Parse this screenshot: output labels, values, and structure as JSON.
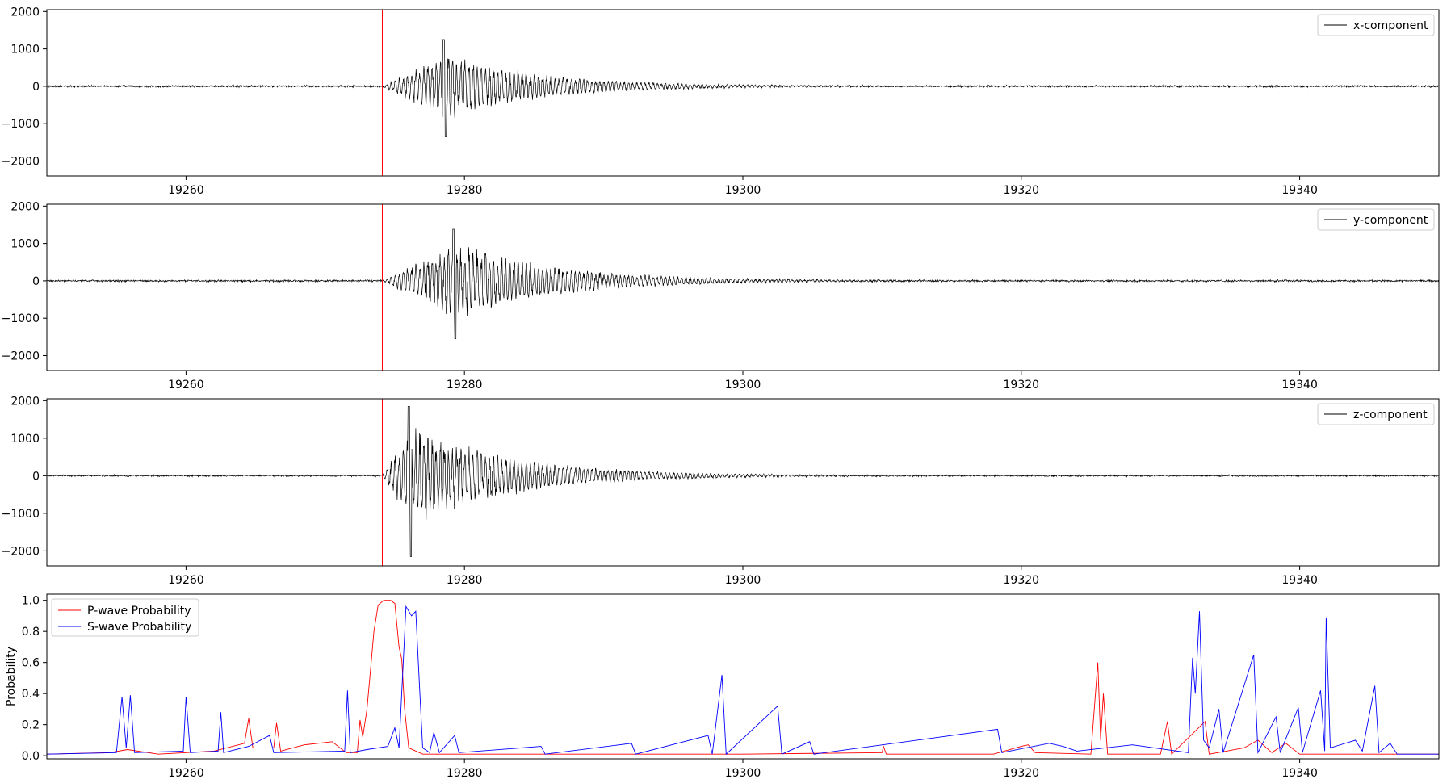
{
  "chart_data": [
    {
      "type": "line",
      "panel": "x",
      "xlim": [
        19250,
        19350
      ],
      "ylim": [
        -2400,
        2050
      ],
      "xticks": [
        19260,
        19280,
        19300,
        19320,
        19340
      ],
      "xtick_labels": [
        "19260",
        "19280",
        "19300",
        "19320",
        "19340"
      ],
      "yticks": [
        -2000,
        -1000,
        0,
        1000,
        2000
      ],
      "ytick_labels": [
        "−2000",
        "−1000",
        "0",
        "1000",
        "2000"
      ],
      "series": [
        {
          "name": "x-component",
          "color": "#000000",
          "onset": 19274.1,
          "peak_max": 1250,
          "peak_min": -1350,
          "peak_time": 19278.5,
          "coda_end": 19300,
          "noise": 18
        }
      ],
      "vlines": [
        {
          "x": 19274.1,
          "color": "#ff0000"
        }
      ],
      "legend": "top-right"
    },
    {
      "type": "line",
      "panel": "y",
      "xlim": [
        19250,
        19350
      ],
      "ylim": [
        -2400,
        2050
      ],
      "xticks": [
        19260,
        19280,
        19300,
        19320,
        19340
      ],
      "xtick_labels": [
        "19260",
        "19280",
        "19300",
        "19320",
        "19340"
      ],
      "yticks": [
        -2000,
        -1000,
        0,
        1000,
        2000
      ],
      "ytick_labels": [
        "−2000",
        "−1000",
        "0",
        "1000",
        "2000"
      ],
      "series": [
        {
          "name": "y-component",
          "color": "#000000",
          "onset": 19274.1,
          "peak_max": 1380,
          "peak_min": -1550,
          "peak_time": 19279.2,
          "coda_end": 19302,
          "noise": 18
        }
      ],
      "vlines": [
        {
          "x": 19274.1,
          "color": "#ff0000"
        }
      ],
      "legend": "top-right"
    },
    {
      "type": "line",
      "panel": "z",
      "xlim": [
        19250,
        19350
      ],
      "ylim": [
        -2400,
        2050
      ],
      "xticks": [
        19260,
        19280,
        19300,
        19320,
        19340
      ],
      "xtick_labels": [
        "19260",
        "19280",
        "19300",
        "19320",
        "19340"
      ],
      "yticks": [
        -2000,
        -1000,
        0,
        1000,
        2000
      ],
      "ytick_labels": [
        "−2000",
        "−1000",
        "0",
        "1000",
        "2000"
      ],
      "series": [
        {
          "name": "z-component",
          "color": "#000000",
          "onset": 19274.1,
          "peak_max": 1850,
          "peak_min": -2150,
          "peak_time": 19276.0,
          "coda_end": 19298,
          "noise": 15
        }
      ],
      "vlines": [
        {
          "x": 19274.1,
          "color": "#ff0000"
        }
      ],
      "legend": "top-right"
    },
    {
      "type": "line",
      "panel": "prob",
      "xlim": [
        19250,
        19350
      ],
      "ylim": [
        -0.02,
        1.04
      ],
      "xticks": [
        19260,
        19280,
        19300,
        19320,
        19340
      ],
      "xtick_labels": [
        "19260",
        "19280",
        "19300",
        "19320",
        "19340"
      ],
      "yticks": [
        0.0,
        0.2,
        0.4,
        0.6,
        0.8,
        1.0
      ],
      "ytick_labels": [
        "0.0",
        "0.2",
        "0.4",
        "0.6",
        "0.8",
        "1.0"
      ],
      "ylabel": "Probability",
      "series": [
        {
          "name": "P-wave Probability",
          "color": "#ff0000",
          "points": [
            [
              19250,
              0.01
            ],
            [
              19254.5,
              0.02
            ],
            [
              19255.8,
              0.04
            ],
            [
              19258,
              0.01
            ],
            [
              19260,
              0.02
            ],
            [
              19262,
              0.03
            ],
            [
              19264.2,
              0.08
            ],
            [
              19264.5,
              0.24
            ],
            [
              19264.8,
              0.05
            ],
            [
              19266.3,
              0.05
            ],
            [
              19266.5,
              0.21
            ],
            [
              19266.8,
              0.03
            ],
            [
              19268.5,
              0.07
            ],
            [
              19270.5,
              0.09
            ],
            [
              19271.5,
              0.02
            ],
            [
              19272.3,
              0.02
            ],
            [
              19272.5,
              0.23
            ],
            [
              19272.7,
              0.12
            ],
            [
              19273.0,
              0.3
            ],
            [
              19273.3,
              0.6
            ],
            [
              19273.5,
              0.8
            ],
            [
              19273.8,
              0.97
            ],
            [
              19274.2,
              1.0
            ],
            [
              19274.7,
              1.0
            ],
            [
              19275.0,
              0.98
            ],
            [
              19275.3,
              0.7
            ],
            [
              19275.5,
              0.62
            ],
            [
              19275.7,
              0.3
            ],
            [
              19276.0,
              0.05
            ],
            [
              19277,
              0.01
            ],
            [
              19290,
              0.01
            ],
            [
              19298,
              0.01
            ],
            [
              19300,
              0.01
            ],
            [
              19310,
              0.02
            ],
            [
              19310.1,
              0.06
            ],
            [
              19310.3,
              0.01
            ],
            [
              19318,
              0.01
            ],
            [
              19320,
              0.06
            ],
            [
              19320.5,
              0.07
            ],
            [
              19321,
              0.02
            ],
            [
              19325,
              0.01
            ],
            [
              19325.5,
              0.6
            ],
            [
              19325.7,
              0.1
            ],
            [
              19325.9,
              0.4
            ],
            [
              19326.2,
              0.01
            ],
            [
              19330,
              0.01
            ],
            [
              19330.5,
              0.22
            ],
            [
              19330.8,
              0.01
            ],
            [
              19333.2,
              0.22
            ],
            [
              19333.5,
              0.01
            ],
            [
              19336,
              0.05
            ],
            [
              19337,
              0.1
            ],
            [
              19338,
              0.02
            ],
            [
              19339,
              0.08
            ],
            [
              19340,
              0.01
            ],
            [
              19350,
              0.01
            ]
          ]
        },
        {
          "name": "S-wave Probability",
          "color": "#0000ff",
          "points": [
            [
              19250,
              0.01
            ],
            [
              19255,
              0.02
            ],
            [
              19255.4,
              0.38
            ],
            [
              19255.7,
              0.05
            ],
            [
              19256.0,
              0.39
            ],
            [
              19256.3,
              0.02
            ],
            [
              19259.8,
              0.03
            ],
            [
              19260.0,
              0.38
            ],
            [
              19260.3,
              0.02
            ],
            [
              19262.3,
              0.03
            ],
            [
              19262.5,
              0.28
            ],
            [
              19262.7,
              0.02
            ],
            [
              19264.5,
              0.06
            ],
            [
              19266.0,
              0.13
            ],
            [
              19266.3,
              0.02
            ],
            [
              19271.4,
              0.03
            ],
            [
              19271.6,
              0.42
            ],
            [
              19271.8,
              0.02
            ],
            [
              19273,
              0.04
            ],
            [
              19274.5,
              0.06
            ],
            [
              19275.0,
              0.18
            ],
            [
              19275.3,
              0.05
            ],
            [
              19275.8,
              0.96
            ],
            [
              19276.2,
              0.9
            ],
            [
              19276.5,
              0.93
            ],
            [
              19276.8,
              0.4
            ],
            [
              19277.0,
              0.05
            ],
            [
              19277.5,
              0.02
            ],
            [
              19277.8,
              0.15
            ],
            [
              19278.2,
              0.02
            ],
            [
              19279.3,
              0.13
            ],
            [
              19279.6,
              0.02
            ],
            [
              19285.5,
              0.06
            ],
            [
              19285.8,
              0.01
            ],
            [
              19292,
              0.08
            ],
            [
              19292.3,
              0.01
            ],
            [
              19297.5,
              0.13
            ],
            [
              19297.8,
              0.01
            ],
            [
              19298.5,
              0.52
            ],
            [
              19298.8,
              0.01
            ],
            [
              19302.5,
              0.32
            ],
            [
              19302.8,
              0.01
            ],
            [
              19304.8,
              0.09
            ],
            [
              19305.1,
              0.01
            ],
            [
              19318.3,
              0.17
            ],
            [
              19318.6,
              0.02
            ],
            [
              19322,
              0.08
            ],
            [
              19323,
              0.06
            ],
            [
              19324,
              0.03
            ],
            [
              19328,
              0.07
            ],
            [
              19332,
              0.02
            ],
            [
              19332.3,
              0.63
            ],
            [
              19332.5,
              0.4
            ],
            [
              19332.8,
              0.93
            ],
            [
              19333.1,
              0.1
            ],
            [
              19333.5,
              0.05
            ],
            [
              19334.2,
              0.3
            ],
            [
              19334.5,
              0.02
            ],
            [
              19336.7,
              0.65
            ],
            [
              19337.0,
              0.02
            ],
            [
              19338.3,
              0.25
            ],
            [
              19338.6,
              0.02
            ],
            [
              19339.9,
              0.31
            ],
            [
              19340.2,
              0.02
            ],
            [
              19341.5,
              0.42
            ],
            [
              19341.8,
              0.03
            ],
            [
              19341.9,
              0.89
            ],
            [
              19342.2,
              0.05
            ],
            [
              19344,
              0.1
            ],
            [
              19344.5,
              0.03
            ],
            [
              19345.4,
              0.45
            ],
            [
              19345.7,
              0.02
            ],
            [
              19346.5,
              0.08
            ],
            [
              19347.0,
              0.01
            ],
            [
              19350,
              0.01
            ]
          ]
        }
      ],
      "legend": "top-left"
    }
  ]
}
